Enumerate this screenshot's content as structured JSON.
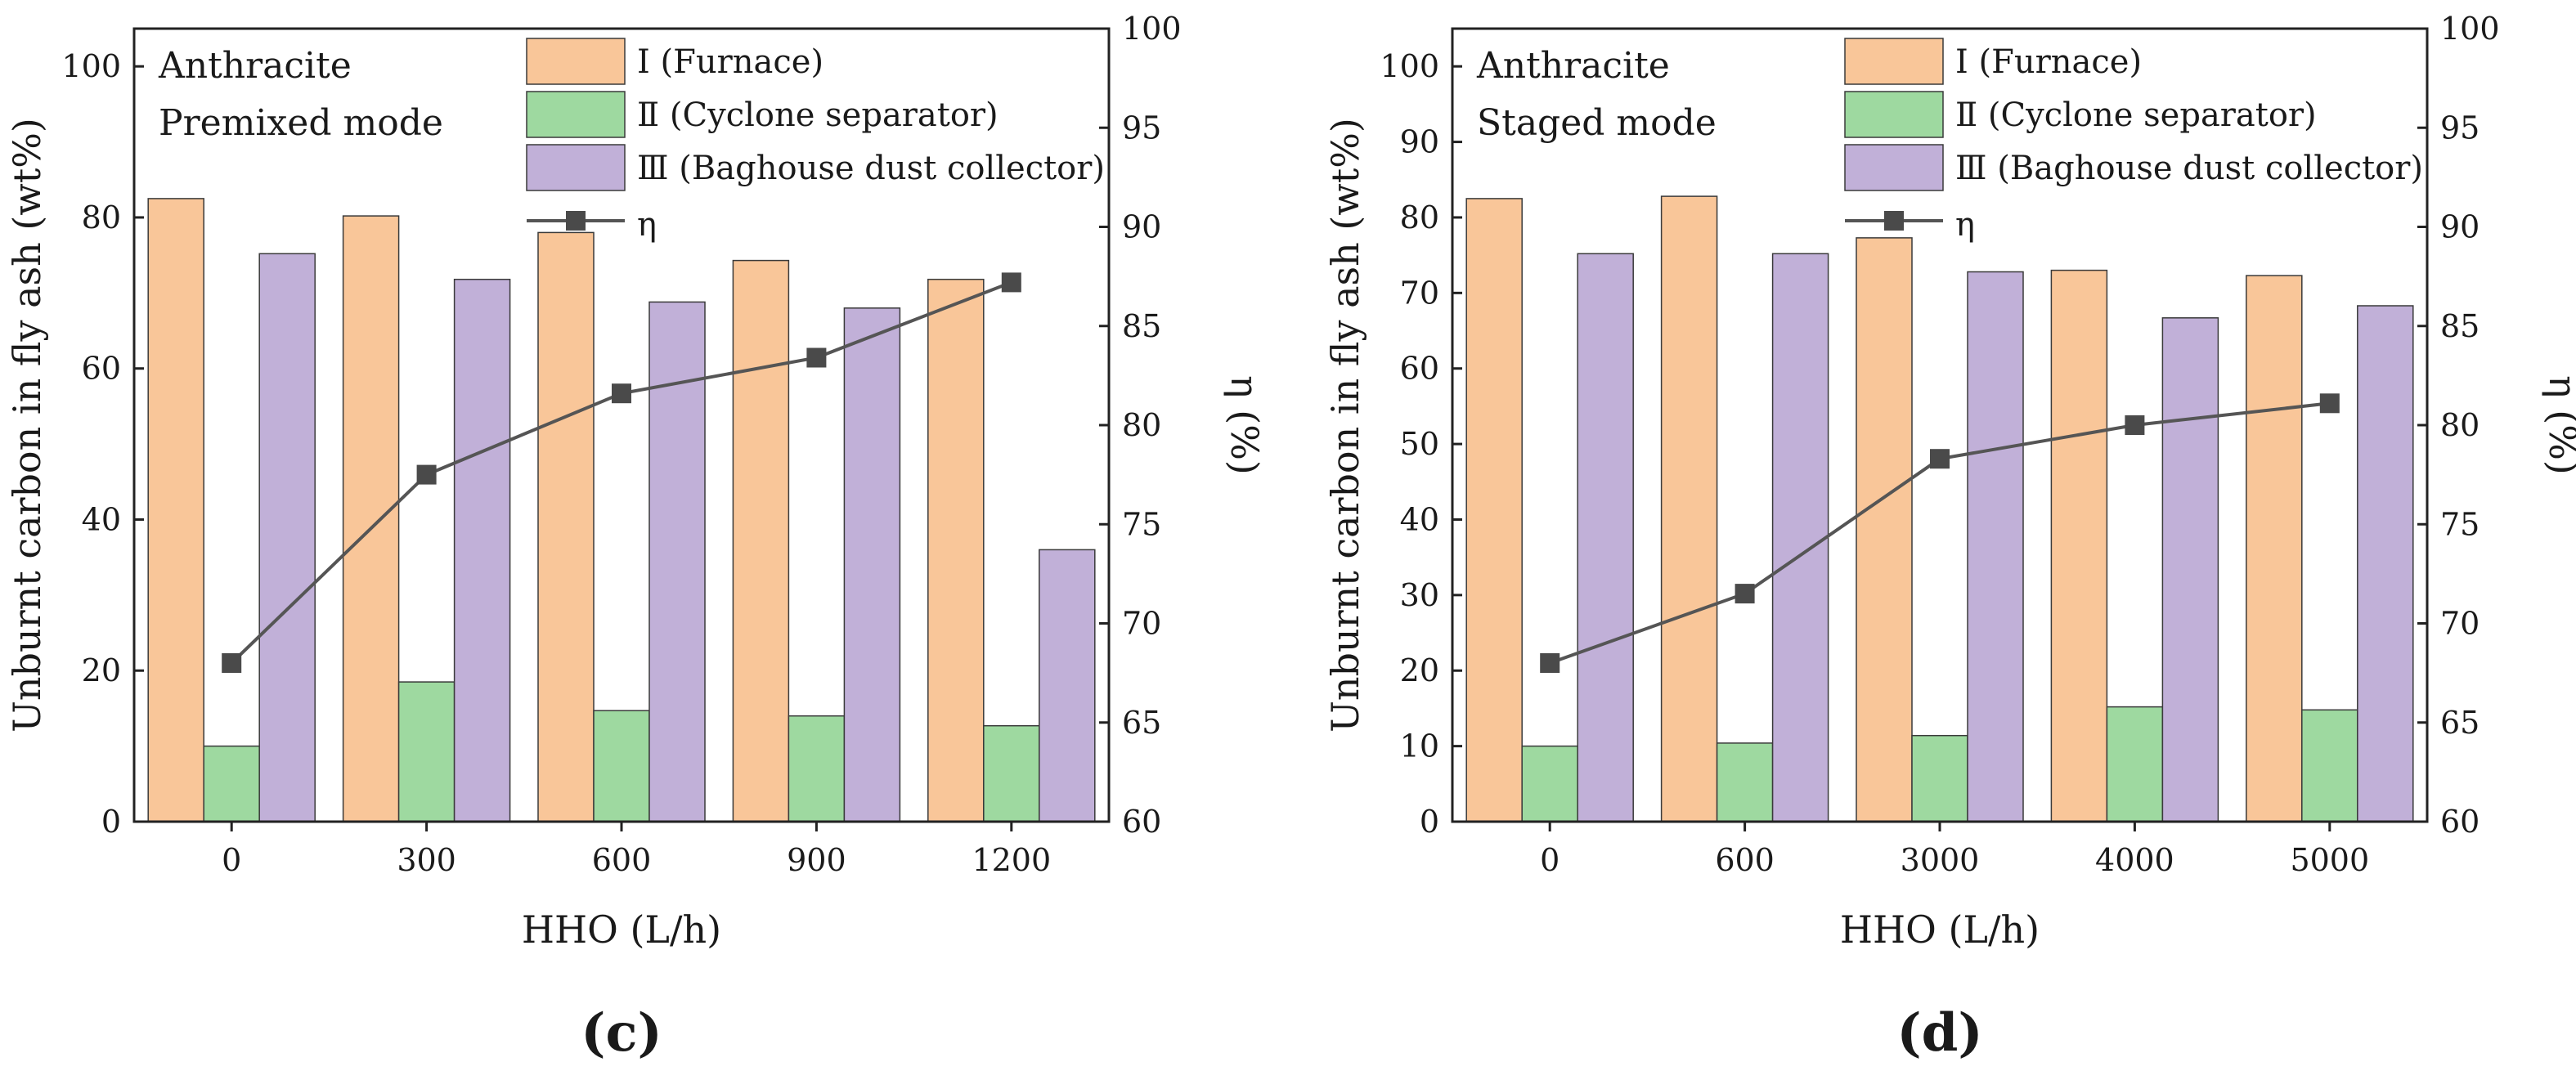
{
  "chart_data": [
    {
      "type": "bar",
      "panel_label": "(c)",
      "fuel": "Anthracite",
      "mode": "Premixed mode",
      "categories": [
        "0",
        "300",
        "600",
        "900",
        "1200"
      ],
      "xlabel": "HHO (L/h)",
      "ylabel": "Unburnt carbon in fly ash (wt%)",
      "ylabel2": "η (%)",
      "ylim": [
        0,
        105
      ],
      "y2lim": [
        60,
        100
      ],
      "yticks": [
        "0",
        "20",
        "40",
        "60",
        "80",
        "100"
      ],
      "y2ticks": [
        "60",
        "65",
        "70",
        "75",
        "80",
        "85",
        "90",
        "95",
        "100"
      ],
      "series": [
        {
          "name": "Ⅰ (Furnace)",
          "kind": "bar",
          "color": "#F9C699",
          "values": [
            82.5,
            80.2,
            78.0,
            74.3,
            71.8
          ]
        },
        {
          "name": "Ⅱ (Cyclone separator)",
          "kind": "bar",
          "color": "#9ED9A0",
          "values": [
            10.0,
            18.5,
            14.7,
            14.0,
            12.7
          ]
        },
        {
          "name": "Ⅲ (Baghouse dust collector)",
          "kind": "bar",
          "color": "#C1B0D8",
          "values": [
            75.2,
            71.8,
            68.8,
            68.0,
            36.0
          ]
        },
        {
          "name": "η",
          "kind": "line",
          "axis": "right",
          "color": "#555555",
          "values": [
            68.0,
            77.5,
            81.6,
            83.4,
            87.2
          ]
        }
      ]
    },
    {
      "type": "bar",
      "panel_label": "(d)",
      "fuel": "Anthracite",
      "mode": "Staged mode",
      "categories": [
        "0",
        "600",
        "3000",
        "4000",
        "5000"
      ],
      "xlabel": "HHO (L/h)",
      "ylabel": "Unburnt carbon in fly ash (wt%)",
      "ylabel2": "η (%)",
      "ylim": [
        0,
        105
      ],
      "y2lim": [
        60,
        100
      ],
      "yticks": [
        "0",
        "10",
        "20",
        "30",
        "40",
        "50",
        "60",
        "70",
        "80",
        "90",
        "100"
      ],
      "y2ticks": [
        "60",
        "65",
        "70",
        "75",
        "80",
        "85",
        "90",
        "95",
        "100"
      ],
      "series": [
        {
          "name": "Ⅰ (Furnace)",
          "kind": "bar",
          "color": "#F9C699",
          "values": [
            82.5,
            82.8,
            77.3,
            73.0,
            72.3
          ]
        },
        {
          "name": "Ⅱ (Cyclone separator)",
          "kind": "bar",
          "color": "#9ED9A0",
          "values": [
            10.0,
            10.4,
            11.4,
            15.2,
            14.8
          ]
        },
        {
          "name": "Ⅲ (Baghouse dust collector)",
          "kind": "bar",
          "color": "#C1B0D8",
          "values": [
            75.2,
            75.2,
            72.8,
            66.7,
            68.3
          ]
        },
        {
          "name": "η",
          "kind": "line",
          "axis": "right",
          "color": "#555555",
          "values": [
            68.0,
            71.5,
            78.3,
            80.0,
            81.1
          ]
        }
      ]
    }
  ]
}
